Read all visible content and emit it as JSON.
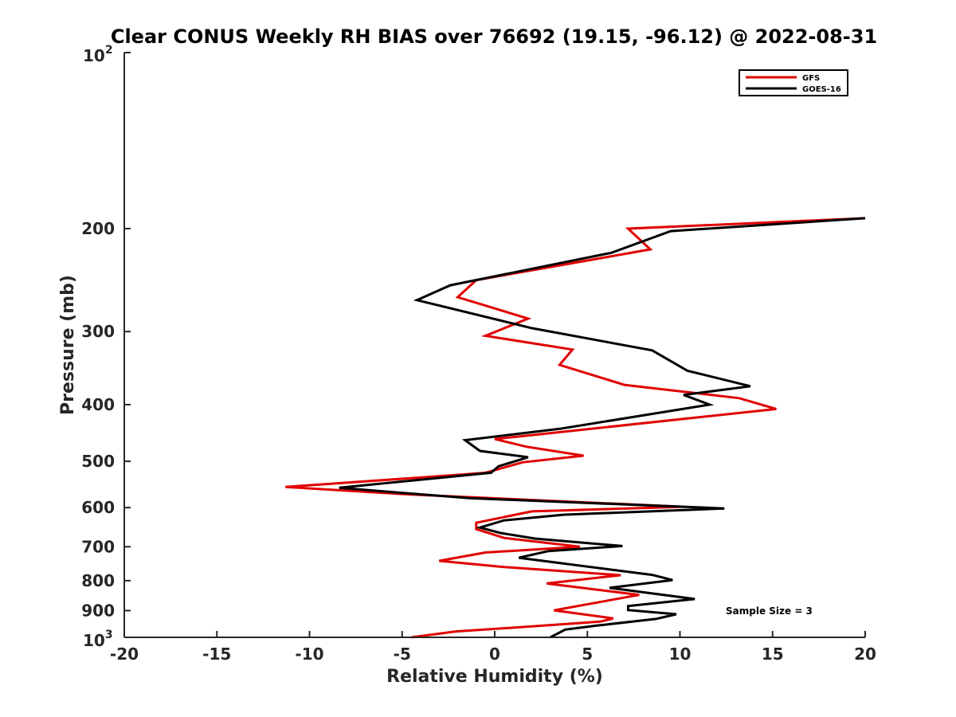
{
  "chart_data": {
    "type": "line",
    "title": "Clear CONUS Weekly RH BIAS over 76692 (19.15, -96.12) @ 2022-08-31",
    "xlabel": "Relative Humidity (%)",
    "ylabel": "Pressure (mb)",
    "xlim": [
      -20,
      20
    ],
    "ylim": [
      100,
      1000
    ],
    "yscale": "log",
    "yreversed": true,
    "xticks": [
      -20,
      -15,
      -10,
      -5,
      0,
      5,
      10,
      15,
      20
    ],
    "xtick_labels": [
      "-20",
      "-15",
      "-10",
      "-5",
      "0",
      "5",
      "10",
      "15",
      "20"
    ],
    "yticks": [
      200,
      300,
      400,
      500,
      600,
      700,
      800,
      900
    ],
    "ytick_labels": [
      "200",
      "300",
      "400",
      "500",
      "600",
      "700",
      "800",
      "900"
    ],
    "ytick_top": {
      "base": "10",
      "exp": "2"
    },
    "ytick_bottom": {
      "base": "10",
      "exp": "3"
    },
    "legend_location": "top-right",
    "grid": false,
    "annotation": "Sample Size = 3",
    "series": [
      {
        "name": "GFS",
        "color": "#e00000",
        "points": [
          [
            20.0,
            192
          ],
          [
            7.2,
            200
          ],
          [
            8.4,
            217
          ],
          [
            -1.0,
            245
          ],
          [
            -2.0,
            262
          ],
          [
            1.8,
            285
          ],
          [
            -0.5,
            305
          ],
          [
            4.2,
            322
          ],
          [
            3.5,
            342
          ],
          [
            7.0,
            370
          ],
          [
            13.2,
            390
          ],
          [
            15.2,
            407
          ],
          [
            0.0,
            458
          ],
          [
            1.7,
            472
          ],
          [
            4.8,
            489
          ],
          [
            1.5,
            502
          ],
          [
            -0.5,
            523
          ],
          [
            -1.8,
            527
          ],
          [
            -11.3,
            553
          ],
          [
            -4.5,
            570
          ],
          [
            10.2,
            598
          ],
          [
            2.0,
            609
          ],
          [
            -1.0,
            637
          ],
          [
            -1.0,
            653
          ],
          [
            0.5,
            676
          ],
          [
            4.6,
            700
          ],
          [
            -0.5,
            716
          ],
          [
            -3.0,
            740
          ],
          [
            0.5,
            758
          ],
          [
            6.8,
            783
          ],
          [
            2.8,
            809
          ],
          [
            7.8,
            846
          ],
          [
            3.2,
            899
          ],
          [
            6.4,
            928
          ],
          [
            5.7,
            940
          ],
          [
            2.0,
            958
          ],
          [
            -2.1,
            977
          ],
          [
            -4.5,
            1000
          ]
        ]
      },
      {
        "name": "GOES-16",
        "color": "#000000",
        "points": [
          [
            20.0,
            192
          ],
          [
            9.5,
            202
          ],
          [
            6.3,
            220
          ],
          [
            -2.4,
            250
          ],
          [
            -4.2,
            265
          ],
          [
            2.0,
            296
          ],
          [
            8.5,
            323
          ],
          [
            10.4,
            350
          ],
          [
            13.8,
            372
          ],
          [
            10.2,
            385
          ],
          [
            11.6,
            400
          ],
          [
            3.5,
            440
          ],
          [
            -1.6,
            460
          ],
          [
            -0.8,
            480
          ],
          [
            1.8,
            492
          ],
          [
            0.2,
            510
          ],
          [
            -0.2,
            523
          ],
          [
            -8.4,
            555
          ],
          [
            -1.4,
            578
          ],
          [
            12.4,
            602
          ],
          [
            3.7,
            617
          ],
          [
            0.5,
            631
          ],
          [
            -0.8,
            649
          ],
          [
            0.3,
            663
          ],
          [
            2.2,
            678
          ],
          [
            6.9,
            698
          ],
          [
            2.9,
            712
          ],
          [
            1.3,
            731
          ],
          [
            8.5,
            782
          ],
          [
            9.6,
            798
          ],
          [
            6.2,
            823
          ],
          [
            10.8,
            860
          ],
          [
            7.2,
            884
          ],
          [
            7.2,
            898
          ],
          [
            9.8,
            913
          ],
          [
            8.7,
            930
          ],
          [
            5.5,
            955
          ],
          [
            3.8,
            970
          ],
          [
            3.0,
            1000
          ]
        ]
      }
    ]
  }
}
